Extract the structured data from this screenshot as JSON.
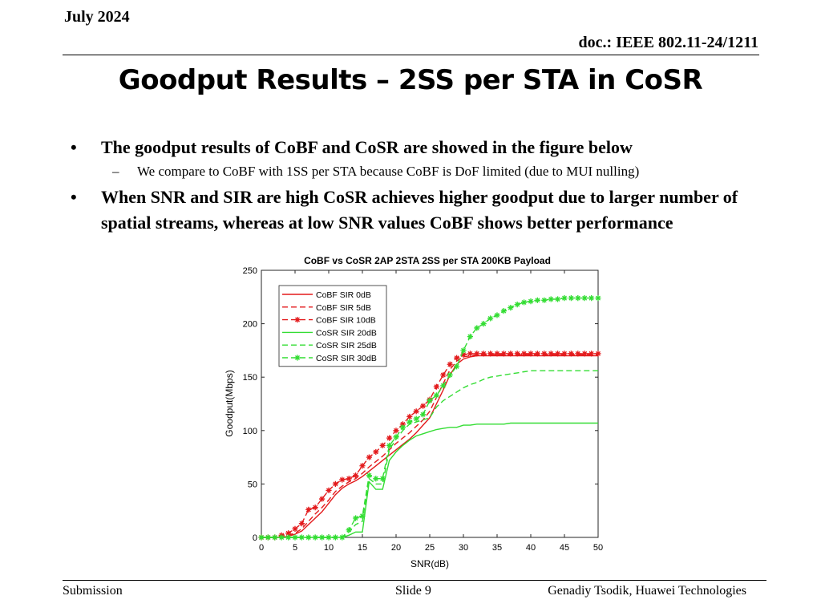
{
  "header": {
    "date": "July 2024",
    "doc": "doc.: IEEE 802.11-24/1211"
  },
  "title": "Goodput Results – 2SS per STA in CoSR",
  "bullets": [
    {
      "text": "The goodput results of CoBF and CoSR are showed in the figure below",
      "sub": [
        "We compare to CoBF with 1SS per STA because CoBF is DoF limited (due to MUI nulling)"
      ]
    },
    {
      "text": "When SNR and SIR are high CoSR achieves higher goodput due to larger number of spatial streams, whereas at low SNR values CoBF shows better performance",
      "sub": []
    }
  ],
  "footer": {
    "left": "Submission",
    "center": "Slide 9",
    "right": "Genadiy Tsodik, Huawei Technologies"
  },
  "chart_data": {
    "type": "line",
    "title": "CoBF vs CoSR 2AP 2STA 2SS per STA 200KB Payload",
    "xlabel": "SNR(dB)",
    "ylabel": "Goodput(Mbps)",
    "xlim": [
      0,
      50
    ],
    "ylim": [
      0,
      250
    ],
    "xticks": [
      0,
      5,
      10,
      15,
      20,
      25,
      30,
      35,
      40,
      45,
      50
    ],
    "yticks": [
      0,
      50,
      100,
      150,
      200,
      250
    ],
    "grid": false,
    "legend_position": "top-left",
    "x": [
      0,
      1,
      2,
      3,
      4,
      5,
      6,
      7,
      8,
      9,
      10,
      11,
      12,
      13,
      14,
      15,
      16,
      17,
      18,
      19,
      20,
      21,
      22,
      23,
      24,
      25,
      26,
      27,
      28,
      29,
      30,
      31,
      32,
      33,
      34,
      35,
      36,
      37,
      38,
      39,
      40,
      41,
      42,
      43,
      44,
      45,
      46,
      47,
      48,
      49,
      50
    ],
    "series": [
      {
        "name": "CoBF SIR 0dB",
        "color": "#e31a1c",
        "dash": "solid",
        "marker": "none",
        "values": [
          0,
          0,
          0,
          0,
          1,
          3,
          6,
          12,
          18,
          24,
          32,
          40,
          46,
          50,
          53,
          57,
          62,
          67,
          72,
          77,
          82,
          87,
          92,
          98,
          105,
          112,
          125,
          138,
          152,
          162,
          167,
          169,
          170,
          170,
          170,
          170,
          170,
          170,
          170,
          170,
          170,
          170,
          170,
          170,
          170,
          170,
          170,
          170,
          170,
          170,
          170
        ]
      },
      {
        "name": "CoBF SIR 5dB",
        "color": "#e31a1c",
        "dash": "dashed",
        "marker": "none",
        "values": [
          0,
          0,
          0,
          1,
          2,
          4,
          8,
          15,
          22,
          28,
          35,
          43,
          48,
          52,
          55,
          60,
          66,
          71,
          76,
          82,
          88,
          93,
          98,
          104,
          110,
          118,
          131,
          144,
          157,
          165,
          169,
          170,
          171,
          171,
          171,
          171,
          171,
          171,
          171,
          171,
          171,
          171,
          171,
          171,
          171,
          171,
          171,
          171,
          171,
          171,
          171
        ]
      },
      {
        "name": "CoBF SIR 10dB",
        "color": "#e31a1c",
        "dash": "dashed",
        "marker": "star",
        "values": [
          0,
          0,
          0,
          2,
          4,
          8,
          13,
          26,
          28,
          36,
          44,
          50,
          54,
          55,
          58,
          67,
          75,
          80,
          86,
          93,
          100,
          106,
          113,
          118,
          123,
          129,
          141,
          152,
          162,
          168,
          171,
          172,
          172,
          172,
          172,
          172,
          172,
          172,
          172,
          172,
          172,
          172,
          172,
          172,
          172,
          172,
          172,
          172,
          172,
          172,
          172
        ]
      },
      {
        "name": "CoSR SIR 20dB",
        "color": "#33dd33",
        "dash": "solid",
        "marker": "none",
        "values": [
          0,
          0,
          0,
          0,
          0,
          0,
          0,
          0,
          0,
          0,
          0,
          0,
          0,
          2,
          5,
          5,
          52,
          45,
          45,
          72,
          80,
          86,
          91,
          95,
          97,
          99,
          101,
          102,
          103,
          103,
          105,
          105,
          106,
          106,
          106,
          106,
          106,
          107,
          107,
          107,
          107,
          107,
          107,
          107,
          107,
          107,
          107,
          107,
          107,
          107,
          107
        ]
      },
      {
        "name": "CoSR SIR 25dB",
        "color": "#33dd33",
        "dash": "dashed",
        "marker": "none",
        "values": [
          0,
          0,
          0,
          0,
          0,
          0,
          0,
          0,
          0,
          0,
          0,
          0,
          0,
          5,
          12,
          15,
          55,
          50,
          50,
          82,
          92,
          100,
          106,
          108,
          110,
          112,
          122,
          128,
          132,
          136,
          140,
          143,
          145,
          148,
          150,
          151,
          152,
          153,
          154,
          155,
          156,
          156,
          156,
          156,
          156,
          156,
          156,
          156,
          156,
          156,
          156
        ]
      },
      {
        "name": "CoSR SIR 30dB",
        "color": "#33dd33",
        "dash": "dashed",
        "marker": "star",
        "values": [
          0,
          0,
          0,
          0,
          0,
          0,
          0,
          0,
          0,
          0,
          0,
          0,
          0,
          7,
          18,
          20,
          58,
          55,
          55,
          86,
          94,
          103,
          108,
          111,
          115,
          128,
          133,
          142,
          152,
          160,
          175,
          188,
          196,
          200,
          205,
          208,
          212,
          215,
          218,
          220,
          221,
          222,
          222,
          223,
          223,
          224,
          224,
          224,
          224,
          224,
          224
        ]
      }
    ]
  }
}
